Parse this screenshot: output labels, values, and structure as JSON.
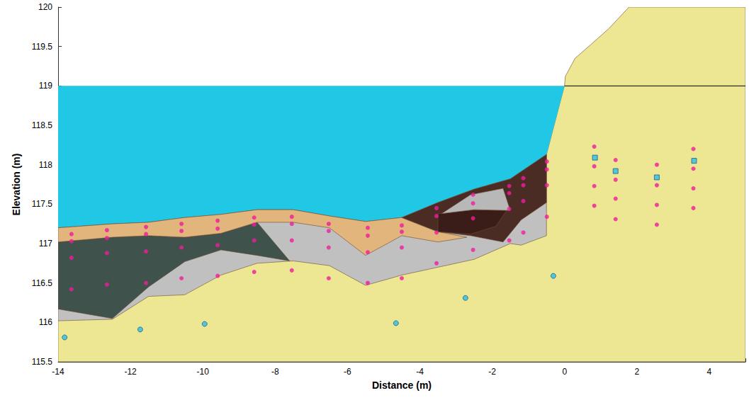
{
  "chart_data": {
    "type": "cross_section",
    "x_label": "Distance (m)",
    "y_label": "Elevation (m)",
    "xlim": [
      -14,
      5
    ],
    "xticks": [
      -14,
      -12,
      -10,
      -8,
      -6,
      -4,
      -2,
      0,
      2,
      4
    ],
    "ylim": [
      115.5,
      120
    ],
    "yticks": [
      115.5,
      116,
      116.5,
      117,
      117.5,
      118,
      118.5,
      119,
      119.5,
      120
    ],
    "grid": false,
    "series": [
      {
        "type": "polygon",
        "color": "#ede794",
        "values": [
          [
            -14,
            115.5
          ],
          [
            5,
            115.5
          ],
          [
            5,
            120
          ],
          [
            1.78,
            120
          ],
          [
            1.23,
            119.73
          ],
          [
            0.74,
            119.53
          ],
          [
            0.29,
            119.35
          ],
          [
            0.02,
            119.12
          ],
          [
            0,
            119.01
          ],
          [
            -0.5,
            118.13
          ],
          [
            -1.5,
            117.82
          ],
          [
            -2.5,
            117.69
          ],
          [
            -3.5,
            117.52
          ],
          [
            -4.5,
            117.33
          ],
          [
            -5.5,
            117.28
          ],
          [
            -6.5,
            117.35
          ],
          [
            -7.5,
            117.43
          ],
          [
            -8.5,
            117.43
          ],
          [
            -9.5,
            117.37
          ],
          [
            -10.5,
            117.33
          ],
          [
            -11.5,
            117.27
          ],
          [
            -12.5,
            117.25
          ],
          [
            -14,
            117.2
          ]
        ]
      },
      {
        "type": "polygon",
        "color": "#20c8e5",
        "values": [
          [
            -14,
            119
          ],
          [
            0,
            119
          ],
          [
            -0.5,
            118.13
          ],
          [
            -1.5,
            117.82
          ],
          [
            -2.5,
            117.69
          ],
          [
            -3.5,
            117.52
          ],
          [
            -4.5,
            117.33
          ],
          [
            -5.5,
            117.28
          ],
          [
            -6.5,
            117.35
          ],
          [
            -7.5,
            117.43
          ],
          [
            -8.5,
            117.43
          ],
          [
            -9.5,
            117.37
          ],
          [
            -10.5,
            117.33
          ],
          [
            -11.5,
            117.27
          ],
          [
            -12.5,
            117.25
          ],
          [
            -14,
            117.2
          ]
        ]
      },
      {
        "type": "polygon",
        "color": "#c0c0c0",
        "values": [
          [
            -14,
            117.2
          ],
          [
            -12.5,
            117.25
          ],
          [
            -11.5,
            117.27
          ],
          [
            -10.5,
            117.33
          ],
          [
            -9.5,
            117.37
          ],
          [
            -8.5,
            117.43
          ],
          [
            -7.5,
            117.43
          ],
          [
            -6.5,
            117.35
          ],
          [
            -5.5,
            117.28
          ],
          [
            -4.5,
            117.33
          ],
          [
            -3.5,
            117.52
          ],
          [
            -2.5,
            117.69
          ],
          [
            -1.5,
            117.82
          ],
          [
            -0.5,
            118.13
          ],
          [
            -0.5,
            117.1
          ],
          [
            -1.2,
            116.98
          ],
          [
            -1.5,
            117.0
          ],
          [
            -2.5,
            116.8
          ],
          [
            -3.5,
            116.7
          ],
          [
            -4.5,
            116.6
          ],
          [
            -5.5,
            116.47
          ],
          [
            -6.5,
            116.72
          ],
          [
            -7.5,
            116.78
          ],
          [
            -8.5,
            116.75
          ],
          [
            -9.5,
            116.6
          ],
          [
            -10.5,
            116.35
          ],
          [
            -11.5,
            116.33
          ],
          [
            -12.5,
            116.04
          ],
          [
            -14,
            116.02
          ]
        ]
      },
      {
        "type": "polygon",
        "color": "#3f524c",
        "values": [
          [
            -14,
            117.02
          ],
          [
            -12.5,
            117.08
          ],
          [
            -11.5,
            117.1
          ],
          [
            -10.5,
            117.08
          ],
          [
            -9.5,
            117.13
          ],
          [
            -8.5,
            117.27
          ],
          [
            -7.6,
            116.78
          ],
          [
            -8.5,
            116.85
          ],
          [
            -9.5,
            116.92
          ],
          [
            -10.5,
            116.77
          ],
          [
            -11.5,
            116.45
          ],
          [
            -12.5,
            116.05
          ],
          [
            -14,
            116.17
          ]
        ]
      },
      {
        "type": "polygon",
        "color": "#e1b57b",
        "values": [
          [
            -14,
            117.2
          ],
          [
            -12.5,
            117.25
          ],
          [
            -11.5,
            117.27
          ],
          [
            -10.5,
            117.33
          ],
          [
            -9.5,
            117.37
          ],
          [
            -8.5,
            117.43
          ],
          [
            -7.5,
            117.43
          ],
          [
            -6.5,
            117.35
          ],
          [
            -5.5,
            117.28
          ],
          [
            -4.5,
            117.33
          ],
          [
            -3.5,
            117.15
          ],
          [
            -2.7,
            117.08
          ],
          [
            -3.5,
            117.02
          ],
          [
            -4.5,
            117.1
          ],
          [
            -5.5,
            116.85
          ],
          [
            -6.5,
            117.2
          ],
          [
            -7.5,
            117.27
          ],
          [
            -8.5,
            117.27
          ],
          [
            -9.5,
            117.13
          ],
          [
            -10.5,
            117.08
          ],
          [
            -11.5,
            117.1
          ],
          [
            -12.5,
            117.08
          ],
          [
            -14,
            117.02
          ]
        ]
      },
      {
        "type": "polygon",
        "color": "#4b2c25",
        "values": [
          [
            -4.5,
            117.33
          ],
          [
            -3.5,
            117.52
          ],
          [
            -2.5,
            117.69
          ],
          [
            -1.5,
            117.82
          ],
          [
            -0.5,
            118.13
          ],
          [
            -0.5,
            117.52
          ],
          [
            -1.2,
            117.3
          ],
          [
            -1.7,
            117.02
          ],
          [
            -2.6,
            117.1
          ],
          [
            -3.5,
            117.15
          ]
        ]
      },
      {
        "type": "polygon",
        "color": "#3a1d18",
        "values": [
          [
            -3.5,
            117.38
          ],
          [
            -2.5,
            117.43
          ],
          [
            -1.6,
            117.42
          ],
          [
            -1.9,
            117.22
          ],
          [
            -2.6,
            117.12
          ],
          [
            -3.5,
            117.15
          ]
        ]
      },
      {
        "type": "polygon",
        "color": "#b8b8b8",
        "values": [
          [
            -3.4,
            117.38
          ],
          [
            -2.6,
            117.62
          ],
          [
            -1.7,
            117.7
          ],
          [
            -1.5,
            117.42
          ],
          [
            -2.5,
            117.43
          ]
        ]
      },
      {
        "type": "line",
        "color": "#000000",
        "line_style": "solid",
        "values": [
          [
            0,
            119
          ],
          [
            5,
            119
          ]
        ]
      },
      {
        "type": "scatter",
        "color": "#f01c9c",
        "marker": "circle",
        "values": [
          [
            -13.63,
            117.12
          ],
          [
            -13.63,
            117.03
          ],
          [
            -13.63,
            116.82
          ],
          [
            -13.63,
            116.42
          ],
          [
            -12.65,
            117.17
          ],
          [
            -12.65,
            117.07
          ],
          [
            -12.65,
            116.88
          ],
          [
            -12.65,
            116.48
          ],
          [
            -11.57,
            117.21
          ],
          [
            -11.57,
            117.12
          ],
          [
            -11.57,
            116.9
          ],
          [
            -11.57,
            116.5
          ],
          [
            -10.59,
            117.25
          ],
          [
            -10.59,
            117.16
          ],
          [
            -10.59,
            116.95
          ],
          [
            -10.59,
            116.56
          ],
          [
            -9.59,
            117.29
          ],
          [
            -9.59,
            117.19
          ],
          [
            -9.59,
            116.98
          ],
          [
            -9.59,
            116.59
          ],
          [
            -8.58,
            117.33
          ],
          [
            -8.58,
            117.24
          ],
          [
            -8.58,
            117.04
          ],
          [
            -8.58,
            116.64
          ],
          [
            -7.54,
            117.34
          ],
          [
            -7.54,
            117.25
          ],
          [
            -7.54,
            117.04
          ],
          [
            -7.54,
            116.66
          ],
          [
            -6.52,
            117.25
          ],
          [
            -6.52,
            117.16
          ],
          [
            -6.52,
            116.95
          ],
          [
            -6.52,
            116.56
          ],
          [
            -5.44,
            117.2
          ],
          [
            -5.44,
            117.1
          ],
          [
            -5.44,
            116.89
          ],
          [
            -5.44,
            116.5
          ],
          [
            -4.5,
            117.23
          ],
          [
            -4.5,
            117.15
          ],
          [
            -4.5,
            116.95
          ],
          [
            -4.5,
            116.56
          ],
          [
            -3.54,
            117.45
          ],
          [
            -3.54,
            117.35
          ],
          [
            -3.54,
            117.14
          ],
          [
            -3.54,
            116.75
          ],
          [
            -2.53,
            117.62
          ],
          [
            -2.53,
            117.51
          ],
          [
            -2.53,
            117.32
          ],
          [
            -2.53,
            116.92
          ],
          [
            -1.53,
            117.73
          ],
          [
            -1.53,
            117.64
          ],
          [
            -1.53,
            117.44
          ],
          [
            -1.53,
            117.04
          ],
          [
            -1.14,
            117.83
          ],
          [
            -1.14,
            117.74
          ],
          [
            -1.14,
            117.54
          ],
          [
            -1.14,
            117.14
          ],
          [
            -0.49,
            118.04
          ],
          [
            -0.49,
            117.94
          ],
          [
            -0.49,
            117.74
          ],
          [
            -0.49,
            117.34
          ],
          [
            0.82,
            118.23
          ],
          [
            0.82,
            117.98
          ],
          [
            0.82,
            117.73
          ],
          [
            0.82,
            117.48
          ],
          [
            1.41,
            118.06
          ],
          [
            1.41,
            117.81
          ],
          [
            1.41,
            117.57
          ],
          [
            1.41,
            117.31
          ],
          [
            2.55,
            118.0
          ],
          [
            2.55,
            117.74
          ],
          [
            2.55,
            117.49
          ],
          [
            2.55,
            117.24
          ],
          [
            3.56,
            118.2
          ],
          [
            3.56,
            117.95
          ],
          [
            3.56,
            117.7
          ],
          [
            3.56,
            117.45
          ]
        ]
      },
      {
        "type": "scatter",
        "color": "#2bbfe8",
        "marker": "circle",
        "values": [
          [
            -13.82,
            115.81
          ],
          [
            -11.73,
            115.91
          ],
          [
            -9.95,
            115.98
          ],
          [
            -4.66,
            115.99
          ],
          [
            -2.74,
            116.31
          ],
          [
            -0.31,
            116.59
          ]
        ]
      },
      {
        "type": "scatter",
        "color": "#2bbfe8",
        "marker": "square",
        "values": [
          [
            0.84,
            118.09
          ],
          [
            1.41,
            117.92
          ],
          [
            2.55,
            117.84
          ],
          [
            3.58,
            118.05
          ]
        ]
      }
    ]
  }
}
